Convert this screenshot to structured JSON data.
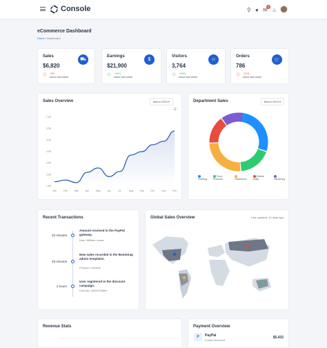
{
  "app": {
    "name": "Console"
  },
  "header": {
    "notif_count": "8"
  },
  "page": {
    "title": "eCommerce Dashboard",
    "breadcrumb_home": "Home",
    "breadcrumb_current": "Dashboard"
  },
  "stats": [
    {
      "label": "Sales",
      "value": "$6,820",
      "change": "-9%",
      "period": "since last week",
      "color": "#e74c3c",
      "icon": "truck-icon"
    },
    {
      "label": "Earnings",
      "value": "$21,900",
      "change": "+26%",
      "period": "since last week",
      "color": "#2ecc71",
      "icon": "dollar-icon"
    },
    {
      "label": "Visitors",
      "value": "3,764",
      "change": "+99%",
      "period": "since last week",
      "color": "#2ecc71",
      "icon": "user-icon"
    },
    {
      "label": "Orders",
      "value": "786",
      "change": "-21%",
      "period": "since last week",
      "color": "#e74c3c",
      "icon": "cart-icon"
    }
  ],
  "sales_overview": {
    "title": "Sales Overview",
    "period": "March 2023"
  },
  "department_sales": {
    "title": "Department Sales",
    "period": "March 2023"
  },
  "recent_transactions": {
    "title": "Recent Transactions",
    "items": [
      {
        "time": "32 minutes",
        "title": "Amount received in the PayPal gateway.",
        "sub": "User: William Lucas"
      },
      {
        "time": "49 minutes",
        "title": "New sales recorded in the Bootstrap admin templates.",
        "sub": "Product: Console"
      },
      {
        "time": "2 hours",
        "title": "User registered in the discount campaign.",
        "sub": "Country: United States"
      }
    ]
  },
  "global_sales": {
    "title": "Global Sales Overview",
    "updated": "Last updated: 15 days ago"
  },
  "revenue_stats": {
    "title": "Revenue Stats"
  },
  "payment_overview": {
    "title": "Payment Overview",
    "name": "PayPal",
    "sub": "Funds Received",
    "amount": "$5,432"
  },
  "chart_data": [
    {
      "type": "area",
      "title": "Sales Overview",
      "x": [
        "Jan",
        "Feb",
        "Mar",
        "Apr",
        "May",
        "Jun",
        "Jul",
        "Aug",
        "Sep",
        "Oct",
        "Nov",
        "Dec"
      ],
      "values": [
        125,
        135,
        120,
        180,
        205,
        155,
        185,
        280,
        300,
        340,
        360,
        420
      ],
      "yticks": [
        "1.5K",
        "2.5K",
        "3.5K",
        "4.5K",
        "5.5K",
        "6.5K",
        "7.5K"
      ],
      "color": "#2f5eb7",
      "ylim": [
        100,
        500
      ]
    },
    {
      "type": "pie",
      "title": "Department Sales",
      "categories": [
        "Clothing",
        "Food Products",
        "Electronics",
        "Kitchen Utility",
        "Gardening"
      ],
      "values": [
        30,
        18,
        25,
        15,
        12
      ],
      "colors": [
        "#1e90ff",
        "#2ecc71",
        "#f5b041",
        "#e74c3c",
        "#7d5bd1"
      ]
    }
  ]
}
